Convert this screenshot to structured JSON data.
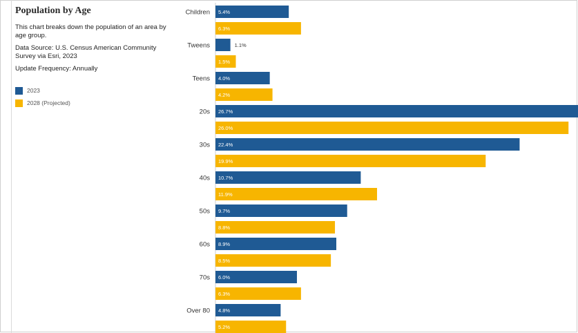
{
  "panel": {
    "title": "Population by Age",
    "description": "This chart breaks down the population of an area by age group.",
    "source": "Data Source: U.S. Census American Community Survey via Esri, 2023",
    "frequency": "Update Frequency: Annually"
  },
  "chart_data": {
    "type": "bar",
    "orientation": "horizontal",
    "categories": [
      "Children",
      "Tweens",
      "Teens",
      "20s",
      "30s",
      "40s",
      "50s",
      "60s",
      "70s",
      "Over 80"
    ],
    "series": [
      {
        "name": "2023",
        "values": [
          5.4,
          1.1,
          4.0,
          26.7,
          22.4,
          10.7,
          9.7,
          8.9,
          6.0,
          4.8
        ],
        "color": "#1f5a94",
        "labels": [
          "5.4%",
          "1.1%",
          "4.0%",
          "26.7%",
          "22.4%",
          "10.7%",
          "9.7%",
          "8.9%",
          "6.0%",
          "4.8%"
        ]
      },
      {
        "name": "2028 (Projected)",
        "values": [
          6.3,
          1.5,
          4.2,
          26.0,
          19.9,
          11.9,
          8.8,
          8.5,
          6.3,
          5.2
        ],
        "color": "#f7b500",
        "labels": [
          "6.3%",
          "1.5%",
          "4.2%",
          "26.0%",
          "19.9%",
          "11.9%",
          "8.8%",
          "8.5%",
          "6.3%",
          "5.2%"
        ]
      }
    ],
    "xlim": [
      0,
      26.7
    ],
    "legend_position": "left",
    "grid": false
  }
}
